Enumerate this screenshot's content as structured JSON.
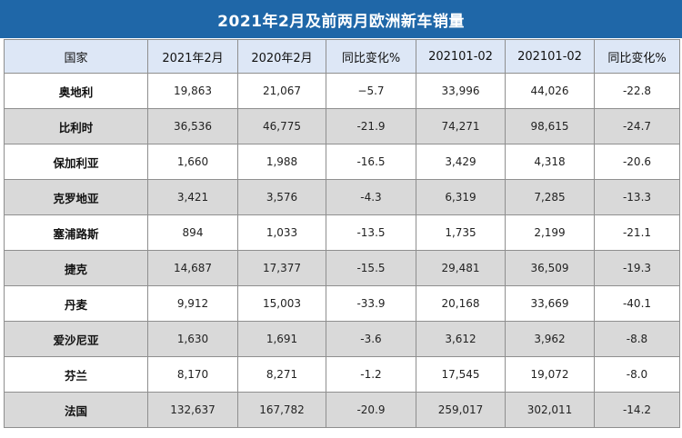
{
  "title": "2021年2月及前两月欧洲新车销量",
  "headers": [
    "国家",
    "2021年2月",
    "2020年2月",
    "同比变化%",
    "202101-02",
    "202101-02",
    "同比变化%"
  ],
  "rows": [
    [
      "奥地利",
      "19,863",
      "21,067",
      "−5.7",
      "33,996",
      "44,026",
      "-22.8"
    ],
    [
      "比利时",
      "36,536",
      "46,775",
      "-21.9",
      "74,271",
      "98,615",
      "-24.7"
    ],
    [
      "保加利亚",
      "1,660",
      "1,988",
      "-16.5",
      "3,429",
      "4,318",
      "-20.6"
    ],
    [
      "克罗地亚",
      "3,421",
      "3,576",
      "-4.3",
      "6,319",
      "7,285",
      "-13.3"
    ],
    [
      "塞浦路斯",
      "894",
      "1,033",
      "-13.5",
      "1,735",
      "2,199",
      "-21.1"
    ],
    [
      "捷克",
      "14,687",
      "17,377",
      "-15.5",
      "29,481",
      "36,509",
      "-19.3"
    ],
    [
      "丹麦",
      "9,912",
      "15,003",
      "-33.9",
      "20,168",
      "33,669",
      "-40.1"
    ],
    [
      "爱沙尼亚",
      "1,630",
      "1,691",
      "-3.6",
      "3,612",
      "3,962",
      "-8.8"
    ],
    [
      "芬兰",
      "8,170",
      "8,271",
      "-1.2",
      "17,545",
      "19,072",
      "-8.0"
    ],
    [
      "法国",
      "132,637",
      "167,782",
      "-20.9",
      "259,017",
      "302,011",
      "-14.2"
    ]
  ],
  "colors": {
    "title_bg": "#1f67a8",
    "header_bg": "#dde7f6",
    "alt_row_bg": "#d9d9d9",
    "border": "#8f8f8f"
  }
}
